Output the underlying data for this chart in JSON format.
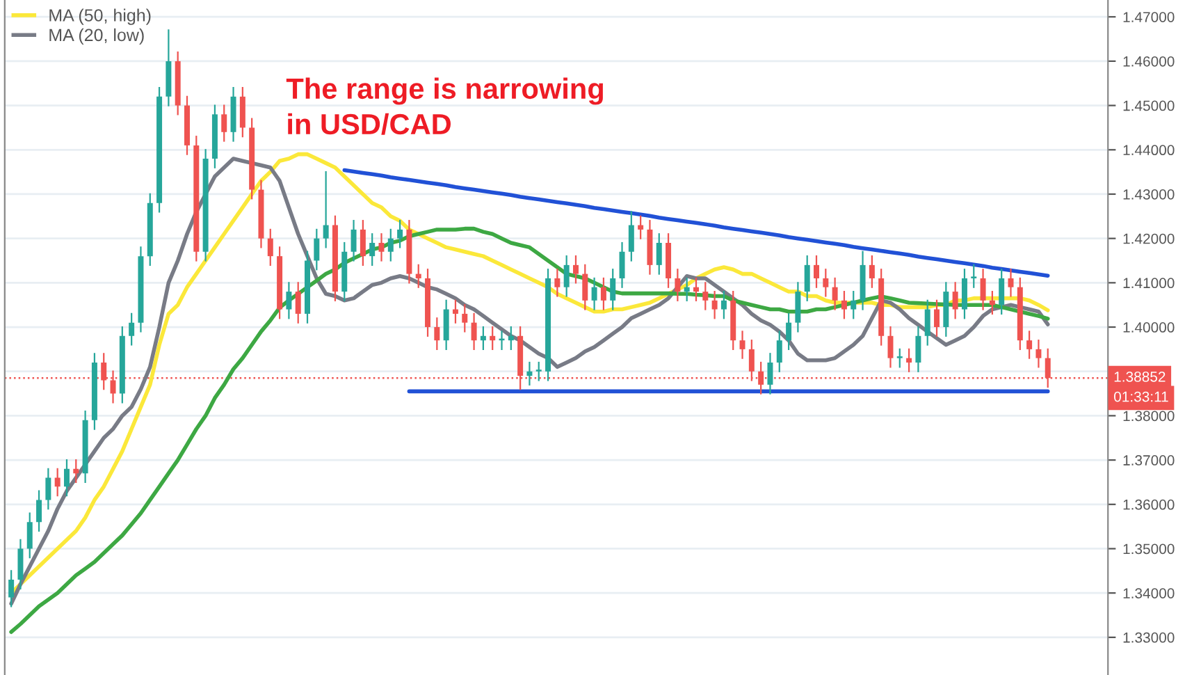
{
  "chart_data": {
    "type": "candlestick",
    "categories": [
      null,
      null,
      null,
      null,
      null,
      null,
      null,
      null,
      null,
      null,
      null,
      null,
      null,
      null,
      null,
      null,
      null,
      null,
      null,
      null,
      null,
      null,
      null,
      null,
      null,
      null,
      null,
      null,
      null,
      null,
      null,
      null,
      null,
      null,
      null,
      null,
      null,
      null,
      null,
      null,
      null,
      null,
      null,
      null,
      null,
      null,
      null,
      null,
      null,
      null,
      null,
      null,
      null,
      null,
      null,
      null,
      null,
      null,
      null,
      null,
      null,
      null,
      null,
      null,
      null,
      null,
      null,
      null,
      null,
      null,
      null,
      null,
      null,
      null,
      null,
      null,
      null,
      null,
      null,
      null,
      null,
      null,
      null,
      null,
      null,
      null,
      null,
      null,
      null,
      null,
      null,
      null,
      null,
      null,
      null,
      null,
      null,
      null,
      null,
      null,
      null,
      null,
      null,
      null,
      null,
      null,
      null,
      null,
      null,
      null,
      null,
      null,
      null
    ],
    "ohlc": [
      [
        1.339,
        1.345,
        1.337,
        1.343
      ],
      [
        1.343,
        1.352,
        1.341,
        1.35
      ],
      [
        1.35,
        1.358,
        1.348,
        1.356
      ],
      [
        1.356,
        1.363,
        1.354,
        1.361
      ],
      [
        1.361,
        1.368,
        1.359,
        1.366
      ],
      [
        1.366,
        1.368,
        1.362,
        1.364
      ],
      [
        1.364,
        1.37,
        1.362,
        1.368
      ],
      [
        1.368,
        1.37,
        1.365,
        1.367
      ],
      [
        1.367,
        1.381,
        1.365,
        1.379
      ],
      [
        1.379,
        1.394,
        1.377,
        1.392
      ],
      [
        1.392,
        1.394,
        1.386,
        1.388
      ],
      [
        1.388,
        1.39,
        1.383,
        1.385
      ],
      [
        1.385,
        1.4,
        1.383,
        1.398
      ],
      [
        1.398,
        1.403,
        1.396,
        1.401
      ],
      [
        1.401,
        1.418,
        1.399,
        1.416
      ],
      [
        1.416,
        1.43,
        1.414,
        1.428
      ],
      [
        1.428,
        1.454,
        1.426,
        1.452
      ],
      [
        1.452,
        1.467,
        1.45,
        1.46
      ],
      [
        1.46,
        1.462,
        1.448,
        1.45
      ],
      [
        1.45,
        1.452,
        1.439,
        1.441
      ],
      [
        1.441,
        1.443,
        1.415,
        1.417
      ],
      [
        1.417,
        1.44,
        1.415,
        1.438
      ],
      [
        1.438,
        1.45,
        1.436,
        1.448
      ],
      [
        1.448,
        1.45,
        1.442,
        1.444
      ],
      [
        1.444,
        1.454,
        1.442,
        1.452
      ],
      [
        1.452,
        1.454,
        1.443,
        1.445
      ],
      [
        1.445,
        1.447,
        1.429,
        1.431
      ],
      [
        1.431,
        1.433,
        1.418,
        1.42
      ],
      [
        1.42,
        1.422,
        1.414,
        1.416
      ],
      [
        1.416,
        1.418,
        1.402,
        1.404
      ],
      [
        1.404,
        1.41,
        1.402,
        1.408
      ],
      [
        1.408,
        1.41,
        1.401,
        1.403
      ],
      [
        1.403,
        1.417,
        1.401,
        1.415
      ],
      [
        1.415,
        1.422,
        1.413,
        1.42
      ],
      [
        1.42,
        1.435,
        1.418,
        1.423
      ],
      [
        1.423,
        1.425,
        1.406,
        1.408
      ],
      [
        1.408,
        1.419,
        1.406,
        1.417
      ],
      [
        1.417,
        1.424,
        1.415,
        1.422
      ],
      [
        1.422,
        1.424,
        1.414,
        1.416
      ],
      [
        1.416,
        1.421,
        1.414,
        1.419
      ],
      [
        1.419,
        1.421,
        1.415,
        1.417
      ],
      [
        1.417,
        1.422,
        1.415,
        1.42
      ],
      [
        1.42,
        1.424,
        1.418,
        1.422
      ],
      [
        1.422,
        1.424,
        1.41,
        1.412
      ],
      [
        1.412,
        1.414,
        1.409,
        1.411
      ],
      [
        1.411,
        1.413,
        1.398,
        1.4
      ],
      [
        1.4,
        1.402,
        1.395,
        1.397
      ],
      [
        1.397,
        1.406,
        1.395,
        1.404
      ],
      [
        1.404,
        1.406,
        1.401,
        1.403
      ],
      [
        1.403,
        1.405,
        1.399,
        1.401
      ],
      [
        1.401,
        1.403,
        1.395,
        1.397
      ],
      [
        1.397,
        1.4,
        1.395,
        1.398
      ],
      [
        1.398,
        1.4,
        1.395,
        1.397
      ],
      [
        1.397,
        1.399,
        1.395,
        1.397
      ],
      [
        1.397,
        1.4,
        1.395,
        1.398
      ],
      [
        1.398,
        1.4,
        1.386,
        1.389
      ],
      [
        1.389,
        1.392,
        1.387,
        1.39
      ],
      [
        1.39,
        1.392,
        1.388,
        1.39
      ],
      [
        1.39,
        1.413,
        1.388,
        1.411
      ],
      [
        1.411,
        1.413,
        1.407,
        1.409
      ],
      [
        1.409,
        1.416,
        1.407,
        1.414
      ],
      [
        1.414,
        1.416,
        1.41,
        1.412
      ],
      [
        1.412,
        1.414,
        1.404,
        1.406
      ],
      [
        1.406,
        1.411,
        1.404,
        1.409
      ],
      [
        1.409,
        1.411,
        1.404,
        1.406
      ],
      [
        1.406,
        1.413,
        1.404,
        1.411
      ],
      [
        1.411,
        1.419,
        1.409,
        1.417
      ],
      [
        1.417,
        1.426,
        1.415,
        1.423
      ],
      [
        1.423,
        1.425,
        1.42,
        1.422
      ],
      [
        1.422,
        1.424,
        1.412,
        1.414
      ],
      [
        1.414,
        1.421,
        1.412,
        1.419
      ],
      [
        1.419,
        1.421,
        1.409,
        1.411
      ],
      [
        1.411,
        1.413,
        1.406,
        1.408
      ],
      [
        1.408,
        1.411,
        1.406,
        1.409
      ],
      [
        1.409,
        1.411,
        1.406,
        1.408
      ],
      [
        1.408,
        1.41,
        1.404,
        1.406
      ],
      [
        1.406,
        1.408,
        1.402,
        1.404
      ],
      [
        1.404,
        1.408,
        1.402,
        1.406
      ],
      [
        1.406,
        1.408,
        1.395,
        1.397
      ],
      [
        1.397,
        1.399,
        1.393,
        1.395
      ],
      [
        1.395,
        1.397,
        1.388,
        1.39
      ],
      [
        1.39,
        1.392,
        1.385,
        1.387
      ],
      [
        1.387,
        1.394,
        1.385,
        1.392
      ],
      [
        1.392,
        1.399,
        1.39,
        1.397
      ],
      [
        1.397,
        1.403,
        1.395,
        1.401
      ],
      [
        1.401,
        1.41,
        1.399,
        1.408
      ],
      [
        1.408,
        1.416,
        1.406,
        1.414
      ],
      [
        1.414,
        1.416,
        1.409,
        1.411
      ],
      [
        1.411,
        1.413,
        1.407,
        1.409
      ],
      [
        1.409,
        1.411,
        1.404,
        1.406
      ],
      [
        1.406,
        1.408,
        1.402,
        1.404
      ],
      [
        1.404,
        1.408,
        1.402,
        1.406
      ],
      [
        1.406,
        1.417,
        1.404,
        1.414
      ],
      [
        1.414,
        1.416,
        1.409,
        1.411
      ],
      [
        1.411,
        1.413,
        1.396,
        1.398
      ],
      [
        1.398,
        1.4,
        1.391,
        1.393
      ],
      [
        1.393,
        1.395,
        1.391,
        1.393
      ],
      [
        1.393,
        1.395,
        1.39,
        1.392
      ],
      [
        1.392,
        1.4,
        1.39,
        1.398
      ],
      [
        1.398,
        1.406,
        1.396,
        1.404
      ],
      [
        1.404,
        1.406,
        1.398,
        1.4
      ],
      [
        1.4,
        1.41,
        1.398,
        1.408
      ],
      [
        1.408,
        1.41,
        1.402,
        1.404
      ],
      [
        1.404,
        1.413,
        1.402,
        1.411
      ],
      [
        1.411,
        1.414,
        1.409,
        1.411
      ],
      [
        1.411,
        1.413,
        1.404,
        1.406
      ],
      [
        1.406,
        1.408,
        1.403,
        1.405
      ],
      [
        1.405,
        1.413,
        1.403,
        1.411
      ],
      [
        1.411,
        1.413,
        1.407,
        1.409
      ],
      [
        1.409,
        1.411,
        1.395,
        1.397
      ],
      [
        1.397,
        1.399,
        1.393,
        1.395
      ],
      [
        1.395,
        1.397,
        1.391,
        1.393
      ],
      [
        1.393,
        1.395,
        1.3865,
        1.3885
      ]
    ],
    "series": [
      {
        "type": "line",
        "name": "MA (50, high)",
        "color": "#fbe83a",
        "values": [
          1.34,
          1.342,
          1.344,
          1.346,
          1.348,
          1.35,
          1.352,
          1.354,
          1.357,
          1.361,
          1.364,
          1.368,
          1.372,
          1.377,
          1.382,
          1.387,
          1.396,
          1.403,
          1.405,
          1.409,
          1.412,
          1.415,
          1.418,
          1.421,
          1.424,
          1.427,
          1.43,
          1.433,
          1.435,
          1.4375,
          1.438,
          1.439,
          1.439,
          1.438,
          1.437,
          1.436,
          1.434,
          1.432,
          1.43,
          1.428,
          1.427,
          1.425,
          1.424,
          1.422,
          1.421,
          1.42,
          1.419,
          1.418,
          1.4175,
          1.417,
          1.4165,
          1.416,
          1.415,
          1.414,
          1.413,
          1.412,
          1.411,
          1.41,
          1.409,
          1.4075,
          1.4065,
          1.4055,
          1.4045,
          1.4035,
          1.4035,
          1.404,
          1.404,
          1.4045,
          1.405,
          1.4055,
          1.4065,
          1.4075,
          1.4085,
          1.4095,
          1.411,
          1.412,
          1.413,
          1.4135,
          1.413,
          1.412,
          1.412,
          1.411,
          1.41,
          1.409,
          1.408,
          1.408,
          1.407,
          1.407,
          1.406,
          1.4055,
          1.4055,
          1.4055,
          1.4055,
          1.4055,
          1.405,
          1.405,
          1.4045,
          1.4045,
          1.4045,
          1.4045,
          1.405,
          1.405,
          1.406,
          1.406,
          1.4065,
          1.4065,
          1.4065,
          1.4065,
          1.4065,
          1.4065,
          1.406,
          1.405,
          1.4038
        ]
      },
      {
        "type": "line",
        "name": "MA (20, low)",
        "color": "#787b86",
        "values": [
          1.3376,
          1.342,
          1.346,
          1.35,
          1.354,
          1.359,
          1.363,
          1.366,
          1.369,
          1.372,
          1.375,
          1.377,
          1.38,
          1.382,
          1.386,
          1.391,
          1.4,
          1.41,
          1.415,
          1.421,
          1.426,
          1.43,
          1.434,
          1.436,
          1.438,
          1.4375,
          1.437,
          1.4365,
          1.436,
          1.433,
          1.427,
          1.421,
          1.416,
          1.411,
          1.4075,
          1.407,
          1.406,
          1.4065,
          1.408,
          1.4095,
          1.41,
          1.411,
          1.4115,
          1.411,
          1.41,
          1.409,
          1.4085,
          1.4075,
          1.4065,
          1.405,
          1.404,
          1.4025,
          1.401,
          1.3995,
          1.398,
          1.397,
          1.3955,
          1.394,
          1.393,
          1.391,
          1.392,
          1.393,
          1.3945,
          1.3955,
          1.397,
          1.3985,
          1.4,
          1.402,
          1.403,
          1.404,
          1.405,
          1.4065,
          1.409,
          1.4115,
          1.411,
          1.411,
          1.4095,
          1.408,
          1.4065,
          1.405,
          1.403,
          1.4015,
          1.4005,
          1.399,
          1.397,
          1.394,
          1.3925,
          1.3925,
          1.3925,
          1.393,
          1.3945,
          1.396,
          1.398,
          1.402,
          1.406,
          1.4055,
          1.404,
          1.402,
          1.4005,
          1.399,
          1.3975,
          1.396,
          1.397,
          1.398,
          1.4,
          1.4025,
          1.404,
          1.4045,
          1.405,
          1.4045,
          1.404,
          1.4035,
          1.4006
        ]
      },
      {
        "type": "line",
        "color": "#3da843",
        "values": [
          1.3312,
          1.333,
          1.335,
          1.337,
          1.3385,
          1.34,
          1.342,
          1.344,
          1.3455,
          1.347,
          1.349,
          1.351,
          1.353,
          1.3555,
          1.358,
          1.361,
          1.364,
          1.367,
          1.37,
          1.3735,
          1.377,
          1.38,
          1.384,
          1.387,
          1.3905,
          1.393,
          1.396,
          1.399,
          1.4015,
          1.4044,
          1.406,
          1.4075,
          1.409,
          1.4105,
          1.412,
          1.413,
          1.4145,
          1.4155,
          1.4165,
          1.4175,
          1.418,
          1.419,
          1.4195,
          1.4205,
          1.421,
          1.4215,
          1.422,
          1.422,
          1.422,
          1.4222,
          1.4222,
          1.4215,
          1.421,
          1.42,
          1.419,
          1.4185,
          1.418,
          1.4165,
          1.415,
          1.4135,
          1.412,
          1.4115,
          1.411,
          1.41,
          1.409,
          1.408,
          1.4076,
          1.4076,
          1.4076,
          1.4076,
          1.4076,
          1.4076,
          1.4075,
          1.4075,
          1.4073,
          1.4072,
          1.407,
          1.407,
          1.406,
          1.4055,
          1.405,
          1.4045,
          1.404,
          1.404,
          1.4035,
          1.4035,
          1.4035,
          1.404,
          1.404,
          1.4045,
          1.405,
          1.4055,
          1.406,
          1.4065,
          1.4069,
          1.4065,
          1.406,
          1.4055,
          1.4054,
          1.4053,
          1.4052,
          1.4051,
          1.405,
          1.405,
          1.405,
          1.405,
          1.405,
          1.4045,
          1.404,
          1.4035,
          1.403,
          1.4025,
          1.4019
        ]
      },
      {
        "type": "line",
        "color": "#2151d6",
        "values": [
          null,
          null,
          null,
          null,
          null,
          null,
          null,
          null,
          null,
          null,
          null,
          null,
          null,
          null,
          null,
          null,
          null,
          null,
          null,
          null,
          null,
          null,
          null,
          null,
          null,
          null,
          null,
          null,
          null,
          null,
          null,
          null,
          null,
          null,
          null,
          null,
          1.4354,
          1.4351,
          1.4348,
          1.4345,
          1.4342,
          1.4338,
          1.4335,
          1.4332,
          1.4329,
          1.4326,
          1.4323,
          1.432,
          1.4316,
          1.4313,
          1.431,
          1.4307,
          1.4304,
          1.4301,
          1.4298,
          1.4294,
          1.4291,
          1.4288,
          1.4285,
          1.4282,
          1.4279,
          1.4276,
          1.4273,
          1.4269,
          1.4266,
          1.4263,
          1.426,
          1.4257,
          1.4254,
          1.4251,
          1.4247,
          1.4244,
          1.4241,
          1.4238,
          1.4235,
          1.4232,
          1.4229,
          1.4225,
          1.4222,
          1.4219,
          1.4216,
          1.4213,
          1.421,
          1.4207,
          1.4203,
          1.42,
          1.4197,
          1.4194,
          1.4191,
          1.4188,
          1.4185,
          1.4181,
          1.4178,
          1.4175,
          1.4172,
          1.4169,
          1.4166,
          1.4163,
          1.4159,
          1.4156,
          1.4153,
          1.415,
          1.4147,
          1.4144,
          1.4141,
          1.4138,
          1.4134,
          1.4131,
          1.4128,
          1.4125,
          1.4122,
          1.4119,
          1.4116
        ]
      },
      {
        "type": "line",
        "color": "#2151d6",
        "values": [
          null,
          null,
          null,
          null,
          null,
          null,
          null,
          null,
          null,
          null,
          null,
          null,
          null,
          null,
          null,
          null,
          null,
          null,
          null,
          null,
          null,
          null,
          null,
          null,
          null,
          null,
          null,
          null,
          null,
          null,
          null,
          null,
          null,
          null,
          null,
          null,
          null,
          null,
          null,
          null,
          null,
          null,
          null,
          1.3855,
          1.3855,
          1.3855,
          1.3855,
          1.3855,
          1.3855,
          1.3855,
          1.3855,
          1.3855,
          1.3855,
          1.3855,
          1.3855,
          1.3855,
          1.3855,
          1.3855,
          1.3855,
          1.3855,
          1.3855,
          1.3855,
          1.3855,
          1.3855,
          1.3855,
          1.3855,
          1.3855,
          1.3855,
          1.3855,
          1.3855,
          1.3855,
          1.3855,
          1.3855,
          1.3855,
          1.3855,
          1.3855,
          1.3855,
          1.3855,
          1.3855,
          1.3855,
          1.3855,
          1.3855,
          1.3855,
          1.3855,
          1.3855,
          1.3855,
          1.3855,
          1.3855,
          1.3855,
          1.3855,
          1.3855,
          1.3855,
          1.3855,
          1.3855,
          1.3855,
          1.3855,
          1.3855,
          1.3855,
          1.3855,
          1.3855,
          1.3855,
          1.3855,
          1.3855,
          1.3855,
          1.3855,
          1.3855,
          1.3855,
          1.3855,
          1.3855,
          1.3855,
          1.3855,
          1.3855,
          1.3855
        ]
      }
    ],
    "ref_lines": [
      {
        "axis": "y",
        "value": 1.38852,
        "label": "1.38852",
        "color": "#ef5350",
        "line_style": "dotted"
      }
    ],
    "annotations": [
      "The range is narrowing\nin USD/CAD",
      "01:33:11"
    ],
    "ylim": [
      1.3215,
      1.4738
    ],
    "yticks": [
      {
        "value": 1.33,
        "label": "1.33000"
      },
      {
        "value": 1.34,
        "label": "1.34000"
      },
      {
        "value": 1.35,
        "label": "1.35000"
      },
      {
        "value": 1.36,
        "label": "1.36000"
      },
      {
        "value": 1.37,
        "label": "1.37000"
      },
      {
        "value": 1.38,
        "label": "1.38000"
      },
      {
        "value": 1.39,
        "label": null
      },
      {
        "value": 1.4,
        "label": "1.40000"
      },
      {
        "value": 1.41,
        "label": "1.41000"
      },
      {
        "value": 1.42,
        "label": "1.42000"
      },
      {
        "value": 1.43,
        "label": "1.43000"
      },
      {
        "value": 1.44,
        "label": "1.44000"
      },
      {
        "value": 1.45,
        "label": "1.45000"
      },
      {
        "value": 1.46,
        "label": "1.46000"
      },
      {
        "value": 1.47,
        "label": "1.47000"
      }
    ],
    "tick_labels": "y",
    "grid": "y",
    "legend": "top left"
  }
}
